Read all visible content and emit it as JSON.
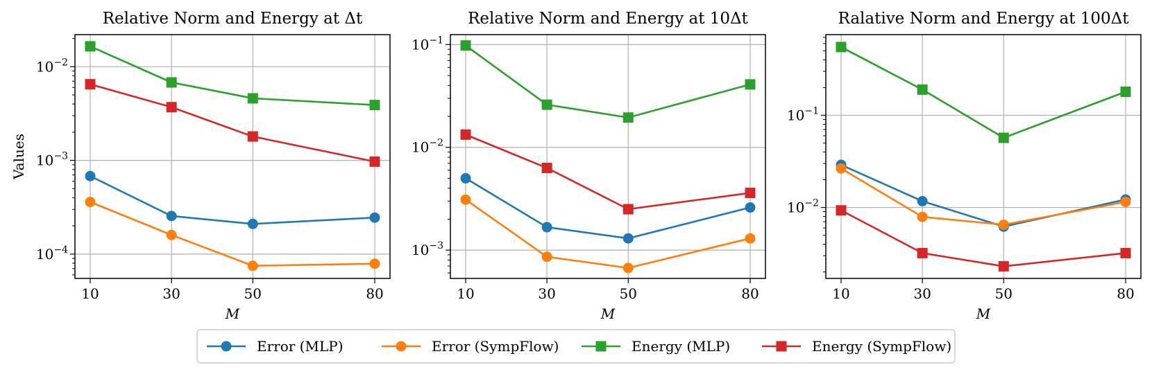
{
  "figure": {
    "ylabel_shared": "Values"
  },
  "chart_data": [
    {
      "type": "line",
      "yscale": "log",
      "title": "Relative Norm and Energy at Δt",
      "xlabel": "M",
      "ylabel": "Values",
      "x": [
        10,
        30,
        50,
        80
      ],
      "xticks": [
        "10",
        "30",
        "50",
        "80"
      ],
      "ylim": [
        5.5e-05,
        0.022
      ],
      "yticks": [
        {
          "value": 0.0001,
          "base": "10",
          "exp": "−4"
        },
        {
          "value": 0.001,
          "base": "10",
          "exp": "−3"
        },
        {
          "value": 0.01,
          "base": "10",
          "exp": "−2"
        }
      ],
      "grid": true,
      "series": [
        {
          "name": "Error (MLP)",
          "color": "#1f77b4",
          "marker": "circle",
          "values": [
            0.00068,
            0.000255,
            0.00021,
            0.000245
          ]
        },
        {
          "name": "Error (SympFlow)",
          "color": "#ff7f0e",
          "marker": "circle",
          "values": [
            0.00036,
            0.00016,
            7.5e-05,
            7.9e-05
          ]
        },
        {
          "name": "Energy (MLP)",
          "color": "#2ca02c",
          "marker": "square",
          "values": [
            0.0165,
            0.0068,
            0.0046,
            0.0039
          ]
        },
        {
          "name": "Energy (SympFlow)",
          "color": "#d62728",
          "marker": "square",
          "values": [
            0.0065,
            0.0037,
            0.0018,
            0.00097
          ]
        }
      ]
    },
    {
      "type": "line",
      "yscale": "log",
      "title": "Relative Norm and Energy at 10Δt",
      "xlabel": "M",
      "ylabel": "",
      "x": [
        10,
        30,
        50,
        80
      ],
      "xticks": [
        "10",
        "30",
        "50",
        "80"
      ],
      "ylim": [
        0.00053,
        0.125
      ],
      "yticks": [
        {
          "value": 0.001,
          "base": "10",
          "exp": "−3"
        },
        {
          "value": 0.01,
          "base": "10",
          "exp": "−2"
        },
        {
          "value": 0.1,
          "base": "10",
          "exp": "−1"
        }
      ],
      "grid": true,
      "series": [
        {
          "name": "Error (MLP)",
          "color": "#1f77b4",
          "marker": "circle",
          "values": [
            0.005,
            0.00167,
            0.0013,
            0.0026
          ]
        },
        {
          "name": "Error (SympFlow)",
          "color": "#ff7f0e",
          "marker": "circle",
          "values": [
            0.0031,
            0.00086,
            0.00067,
            0.0013
          ]
        },
        {
          "name": "Energy (MLP)",
          "color": "#2ca02c",
          "marker": "square",
          "values": [
            0.098,
            0.026,
            0.0195,
            0.041
          ]
        },
        {
          "name": "Energy (SympFlow)",
          "color": "#d62728",
          "marker": "square",
          "values": [
            0.0133,
            0.0063,
            0.0025,
            0.0036
          ]
        }
      ]
    },
    {
      "type": "line",
      "yscale": "log",
      "title": "Ralative Norm and Energy at 100Δt",
      "xlabel": "M",
      "ylabel": "",
      "x": [
        10,
        30,
        50,
        80
      ],
      "xticks": [
        "10",
        "30",
        "50",
        "80"
      ],
      "ylim": [
        0.0017,
        0.75
      ],
      "yticks": [
        {
          "value": 0.01,
          "base": "10",
          "exp": "−2"
        },
        {
          "value": 0.1,
          "base": "10",
          "exp": "−1"
        }
      ],
      "grid": true,
      "series": [
        {
          "name": "Error (MLP)",
          "color": "#1f77b4",
          "marker": "circle",
          "values": [
            0.029,
            0.0117,
            0.0062,
            0.0122
          ]
        },
        {
          "name": "Error (SympFlow)",
          "color": "#ff7f0e",
          "marker": "circle",
          "values": [
            0.0265,
            0.0079,
            0.0065,
            0.0115
          ]
        },
        {
          "name": "Energy (MLP)",
          "color": "#2ca02c",
          "marker": "square",
          "values": [
            0.55,
            0.19,
            0.057,
            0.18
          ]
        },
        {
          "name": "Energy (SympFlow)",
          "color": "#d62728",
          "marker": "square",
          "values": [
            0.0093,
            0.0032,
            0.0023,
            0.0032
          ]
        }
      ]
    }
  ],
  "legend": {
    "placement": "bottom-center",
    "entries": [
      {
        "label": "Error (MLP)",
        "color": "#1f77b4",
        "marker": "circle"
      },
      {
        "label": "Error (SympFlow)",
        "color": "#ff7f0e",
        "marker": "circle"
      },
      {
        "label": "Energy (MLP)",
        "color": "#2ca02c",
        "marker": "square"
      },
      {
        "label": "Energy (SympFlow)",
        "color": "#d62728",
        "marker": "square"
      }
    ]
  }
}
